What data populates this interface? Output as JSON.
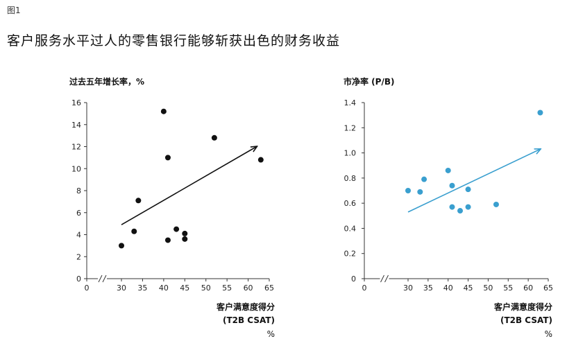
{
  "figure": {
    "label": "图1",
    "title": "客户服务水平过人的零售银行能够斩获出色的财务收益"
  },
  "chart_data": [
    {
      "type": "scatter",
      "ylabel": "过去五年增长率，%",
      "xlabel_line1": "客户满意度得分",
      "xlabel_line2": "(T2B CSAT)",
      "xlabel_unit": "%",
      "xlim": [
        0,
        65
      ],
      "ylim": [
        0,
        16
      ],
      "xticks": [
        0,
        30,
        35,
        40,
        45,
        50,
        55,
        60,
        65
      ],
      "yticks": [
        0,
        2,
        4,
        6,
        8,
        10,
        12,
        14,
        16
      ],
      "ytick_labels": [
        "0",
        "2",
        "4",
        "6",
        "8",
        "10",
        "12",
        "14",
        "16"
      ],
      "axis_break": true,
      "grid": false,
      "color": "#111111",
      "points": [
        {
          "x": 30,
          "y": 3.0
        },
        {
          "x": 33,
          "y": 4.3
        },
        {
          "x": 34,
          "y": 7.1
        },
        {
          "x": 40,
          "y": 15.2
        },
        {
          "x": 41,
          "y": 11.0
        },
        {
          "x": 41,
          "y": 3.5
        },
        {
          "x": 43,
          "y": 4.5
        },
        {
          "x": 45,
          "y": 4.1
        },
        {
          "x": 45,
          "y": 3.6
        },
        {
          "x": 52,
          "y": 12.8
        },
        {
          "x": 63,
          "y": 10.8
        }
      ],
      "trend": {
        "x1": 30,
        "y1": 4.9,
        "x2": 62,
        "y2": 12.0
      }
    },
    {
      "type": "scatter",
      "ylabel": "市净率 (P/B)",
      "xlabel_line1": "客户满意度得分",
      "xlabel_line2": "(T2B CSAT)",
      "xlabel_unit": "%",
      "xlim": [
        0,
        65
      ],
      "ylim": [
        0,
        1.4
      ],
      "xticks": [
        0,
        30,
        35,
        40,
        45,
        50,
        55,
        60,
        65
      ],
      "yticks": [
        0,
        0.2,
        0.4,
        0.6,
        0.8,
        1.0,
        1.2,
        1.4
      ],
      "ytick_labels": [
        "0",
        "0.2",
        "0.4",
        "0.6",
        "0.8",
        "1.0",
        "1.2",
        "1.4"
      ],
      "axis_break": true,
      "grid": false,
      "color": "#3a9fcf",
      "points": [
        {
          "x": 30,
          "y": 0.7
        },
        {
          "x": 33,
          "y": 0.69
        },
        {
          "x": 34,
          "y": 0.79
        },
        {
          "x": 40,
          "y": 0.86
        },
        {
          "x": 41,
          "y": 0.74
        },
        {
          "x": 41,
          "y": 0.57
        },
        {
          "x": 43,
          "y": 0.54
        },
        {
          "x": 45,
          "y": 0.71
        },
        {
          "x": 45,
          "y": 0.57
        },
        {
          "x": 52,
          "y": 0.59
        },
        {
          "x": 63,
          "y": 1.32
        }
      ],
      "trend": {
        "x1": 30,
        "y1": 0.53,
        "x2": 63,
        "y2": 1.03
      }
    }
  ]
}
